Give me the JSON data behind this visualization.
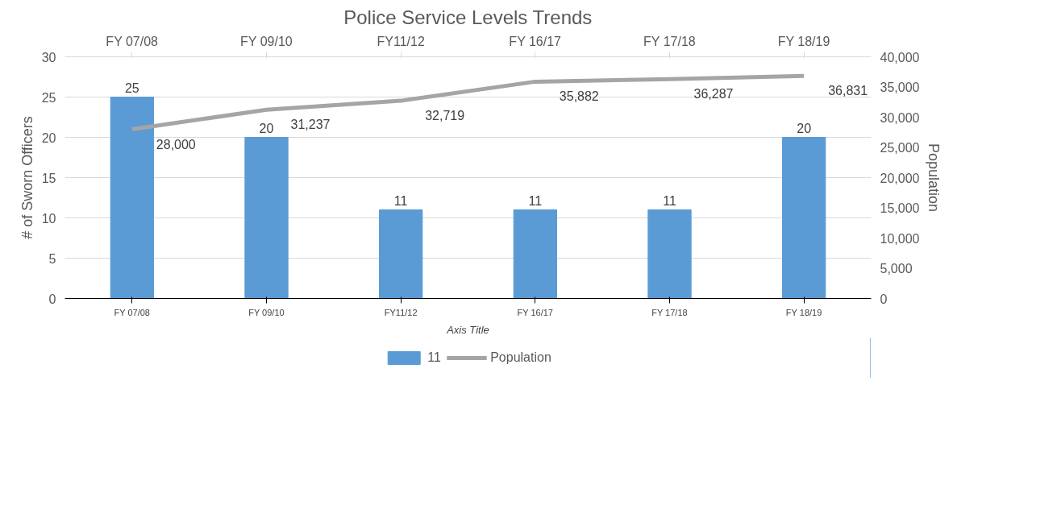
{
  "chart_data": {
    "type": "bar",
    "title": "Police Service Levels Trends",
    "xlabel": "Axis Title",
    "ylabel": "# of Sworn Officers",
    "y2label": "Population",
    "categories": [
      "FY 07/08",
      "FY 09/10",
      "FY11/12",
      "FY 16/17",
      "FY 17/18",
      "FY 18/19"
    ],
    "series": [
      {
        "name": "11",
        "color": "#5b9bd5",
        "values": [
          25,
          20,
          11,
          11,
          11,
          20
        ]
      },
      {
        "name": "Population",
        "type": "line",
        "axis": "y2",
        "color": "#a5a5a5",
        "values": [
          28000,
          31237,
          32719,
          35882,
          36287,
          36831
        ],
        "value_labels": [
          "28,000",
          "31,237",
          "32,719",
          "35,882",
          "36,287",
          "36,831"
        ]
      }
    ],
    "ylim": [
      0,
      30
    ],
    "yticks": [
      0,
      5,
      10,
      15,
      20,
      25,
      30
    ],
    "y2lim": [
      0,
      40000
    ],
    "y2ticks": [
      {
        "value": 0,
        "label": "0"
      },
      {
        "value": 5000,
        "label": "5,000"
      },
      {
        "value": 10000,
        "label": "10,000"
      },
      {
        "value": 15000,
        "label": "15,000"
      },
      {
        "value": 20000,
        "label": "20,000"
      },
      {
        "value": 25000,
        "label": "25,000"
      },
      {
        "value": 30000,
        "label": "30,000"
      },
      {
        "value": 35000,
        "label": "35,000"
      },
      {
        "value": 40000,
        "label": "40,000"
      }
    ],
    "grid": "y",
    "legend": "bottom",
    "data_labels": true,
    "marker": "none",
    "line_style": "solid"
  }
}
